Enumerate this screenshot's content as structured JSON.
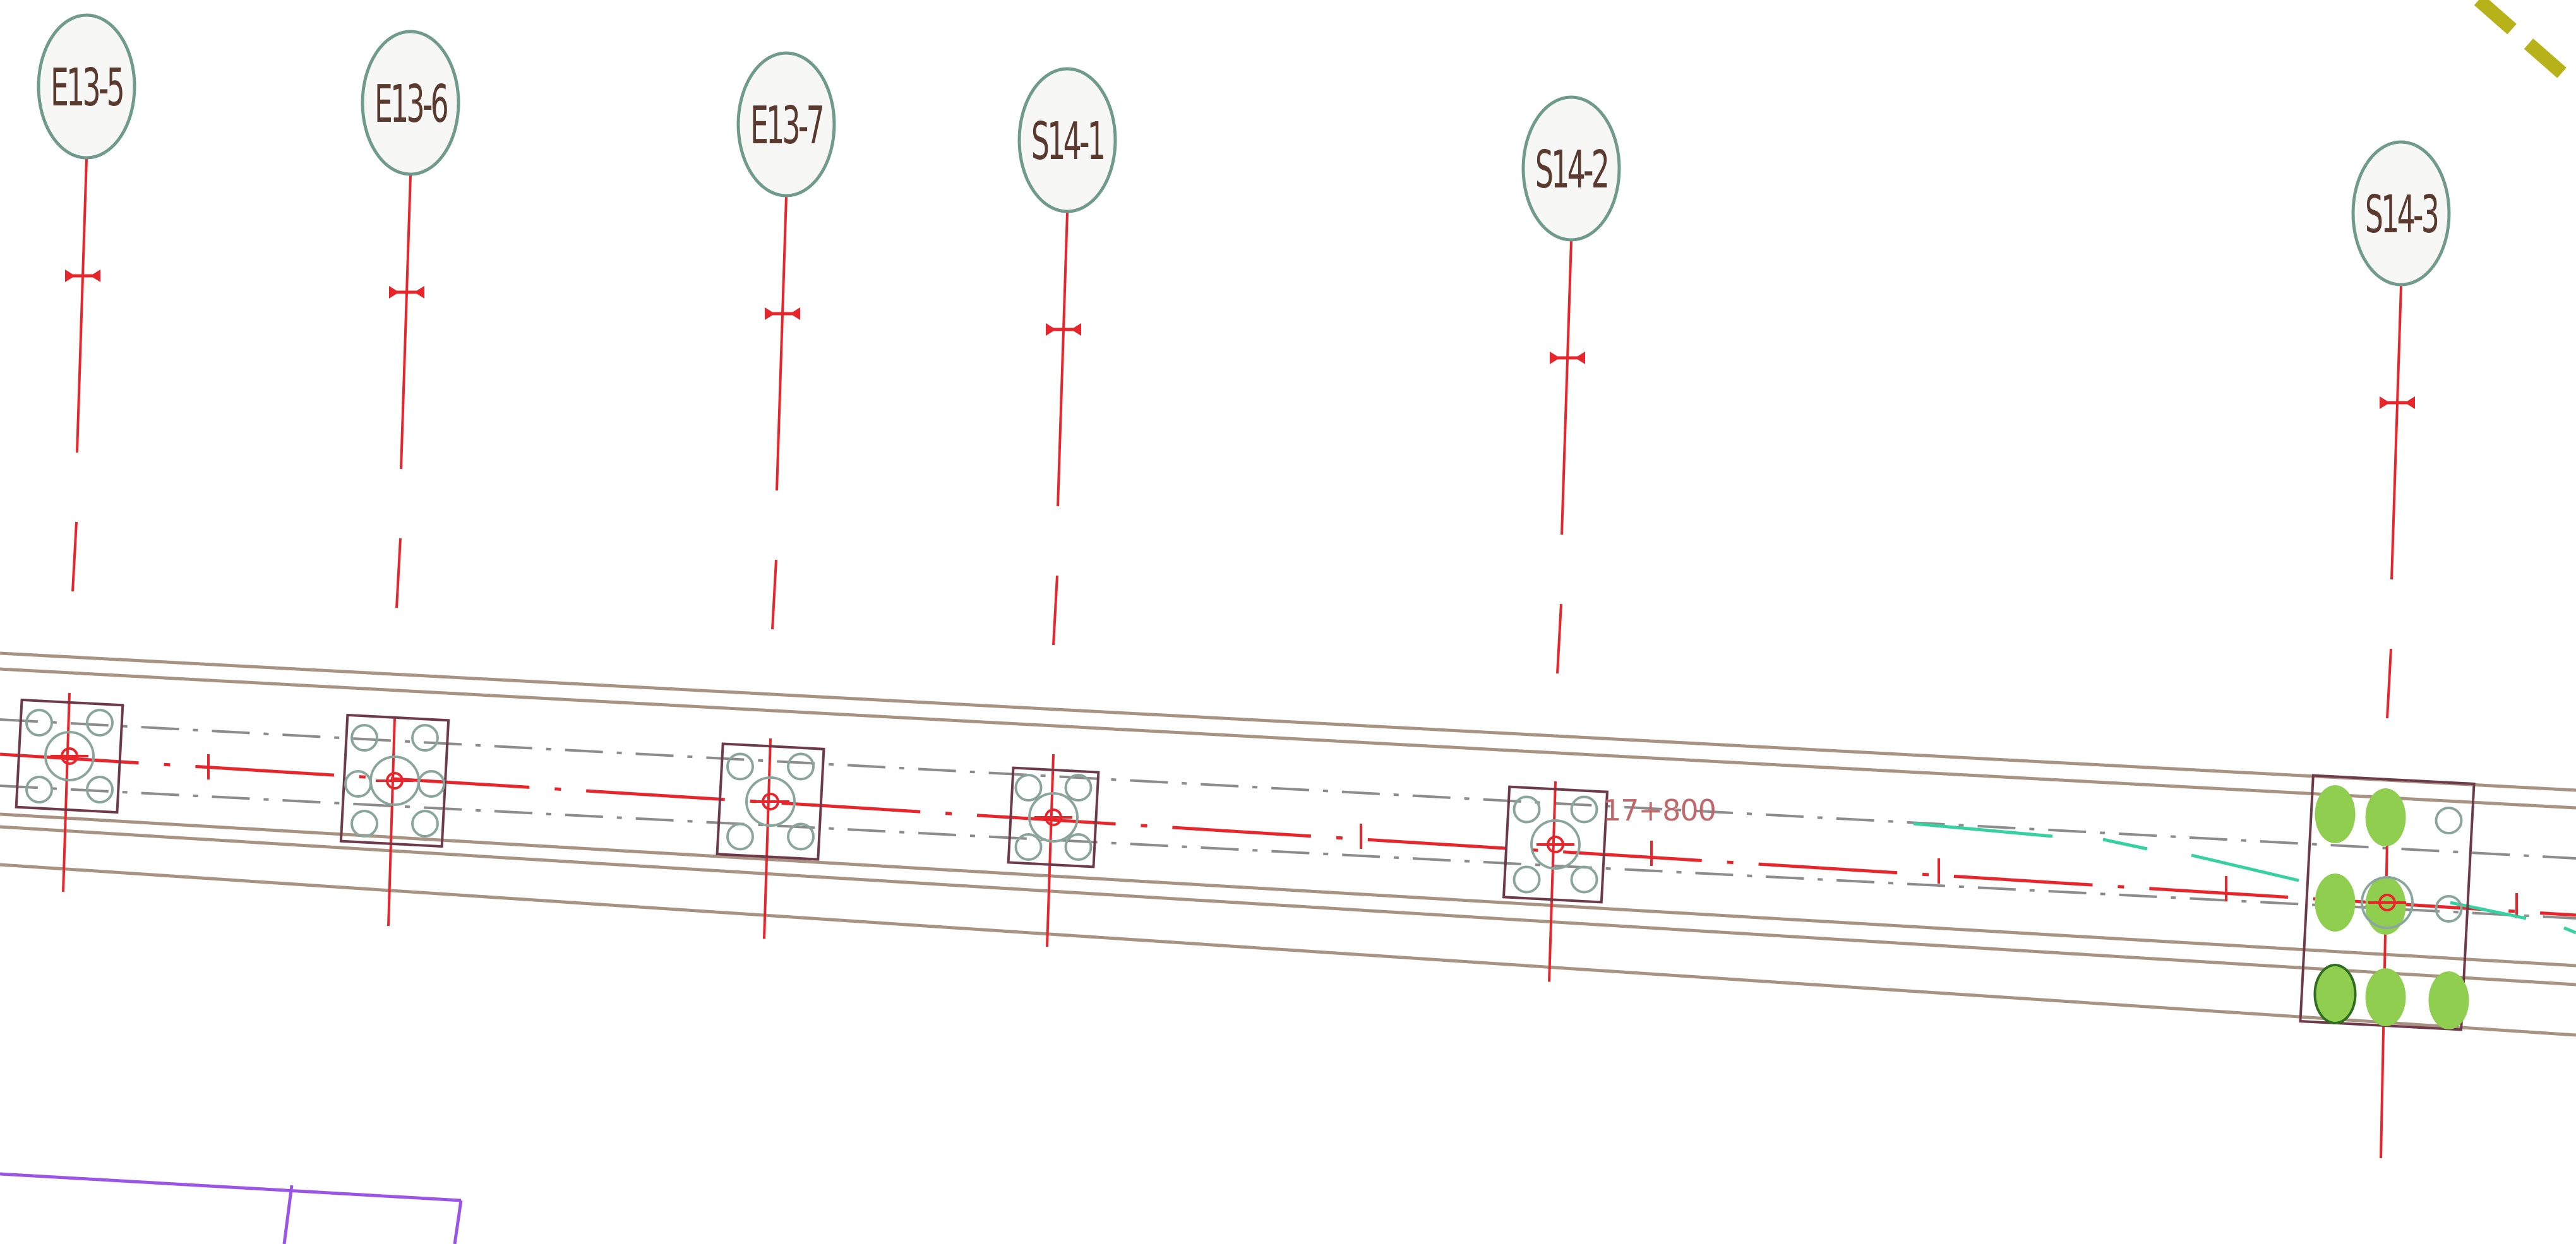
{
  "drawing": {
    "piers": [
      {
        "label": "E13-5"
      },
      {
        "label": "E13-6"
      },
      {
        "label": "E13-7"
      },
      {
        "label": "S14-1"
      },
      {
        "label": "S14-2"
      },
      {
        "label": "S14-3"
      }
    ],
    "station_label": "17+800"
  },
  "colors": {
    "background": "#ffffff",
    "bubble_stroke": "#6f9a8c",
    "bubble_fill": "#f7f8f6",
    "label_text": "#5a3a2e",
    "centerline_red": "#e8252b",
    "edge_tan": "#a89282",
    "dashdot_gray": "#8c8c8c",
    "footing_outline": "#6e3a4a",
    "pile_gray": "#8aa69c",
    "pile_highlight": "#8fce4f",
    "cyan_line": "#35d1a0",
    "purple_line": "#9a55e8",
    "olive_dash": "#b8b21a"
  }
}
